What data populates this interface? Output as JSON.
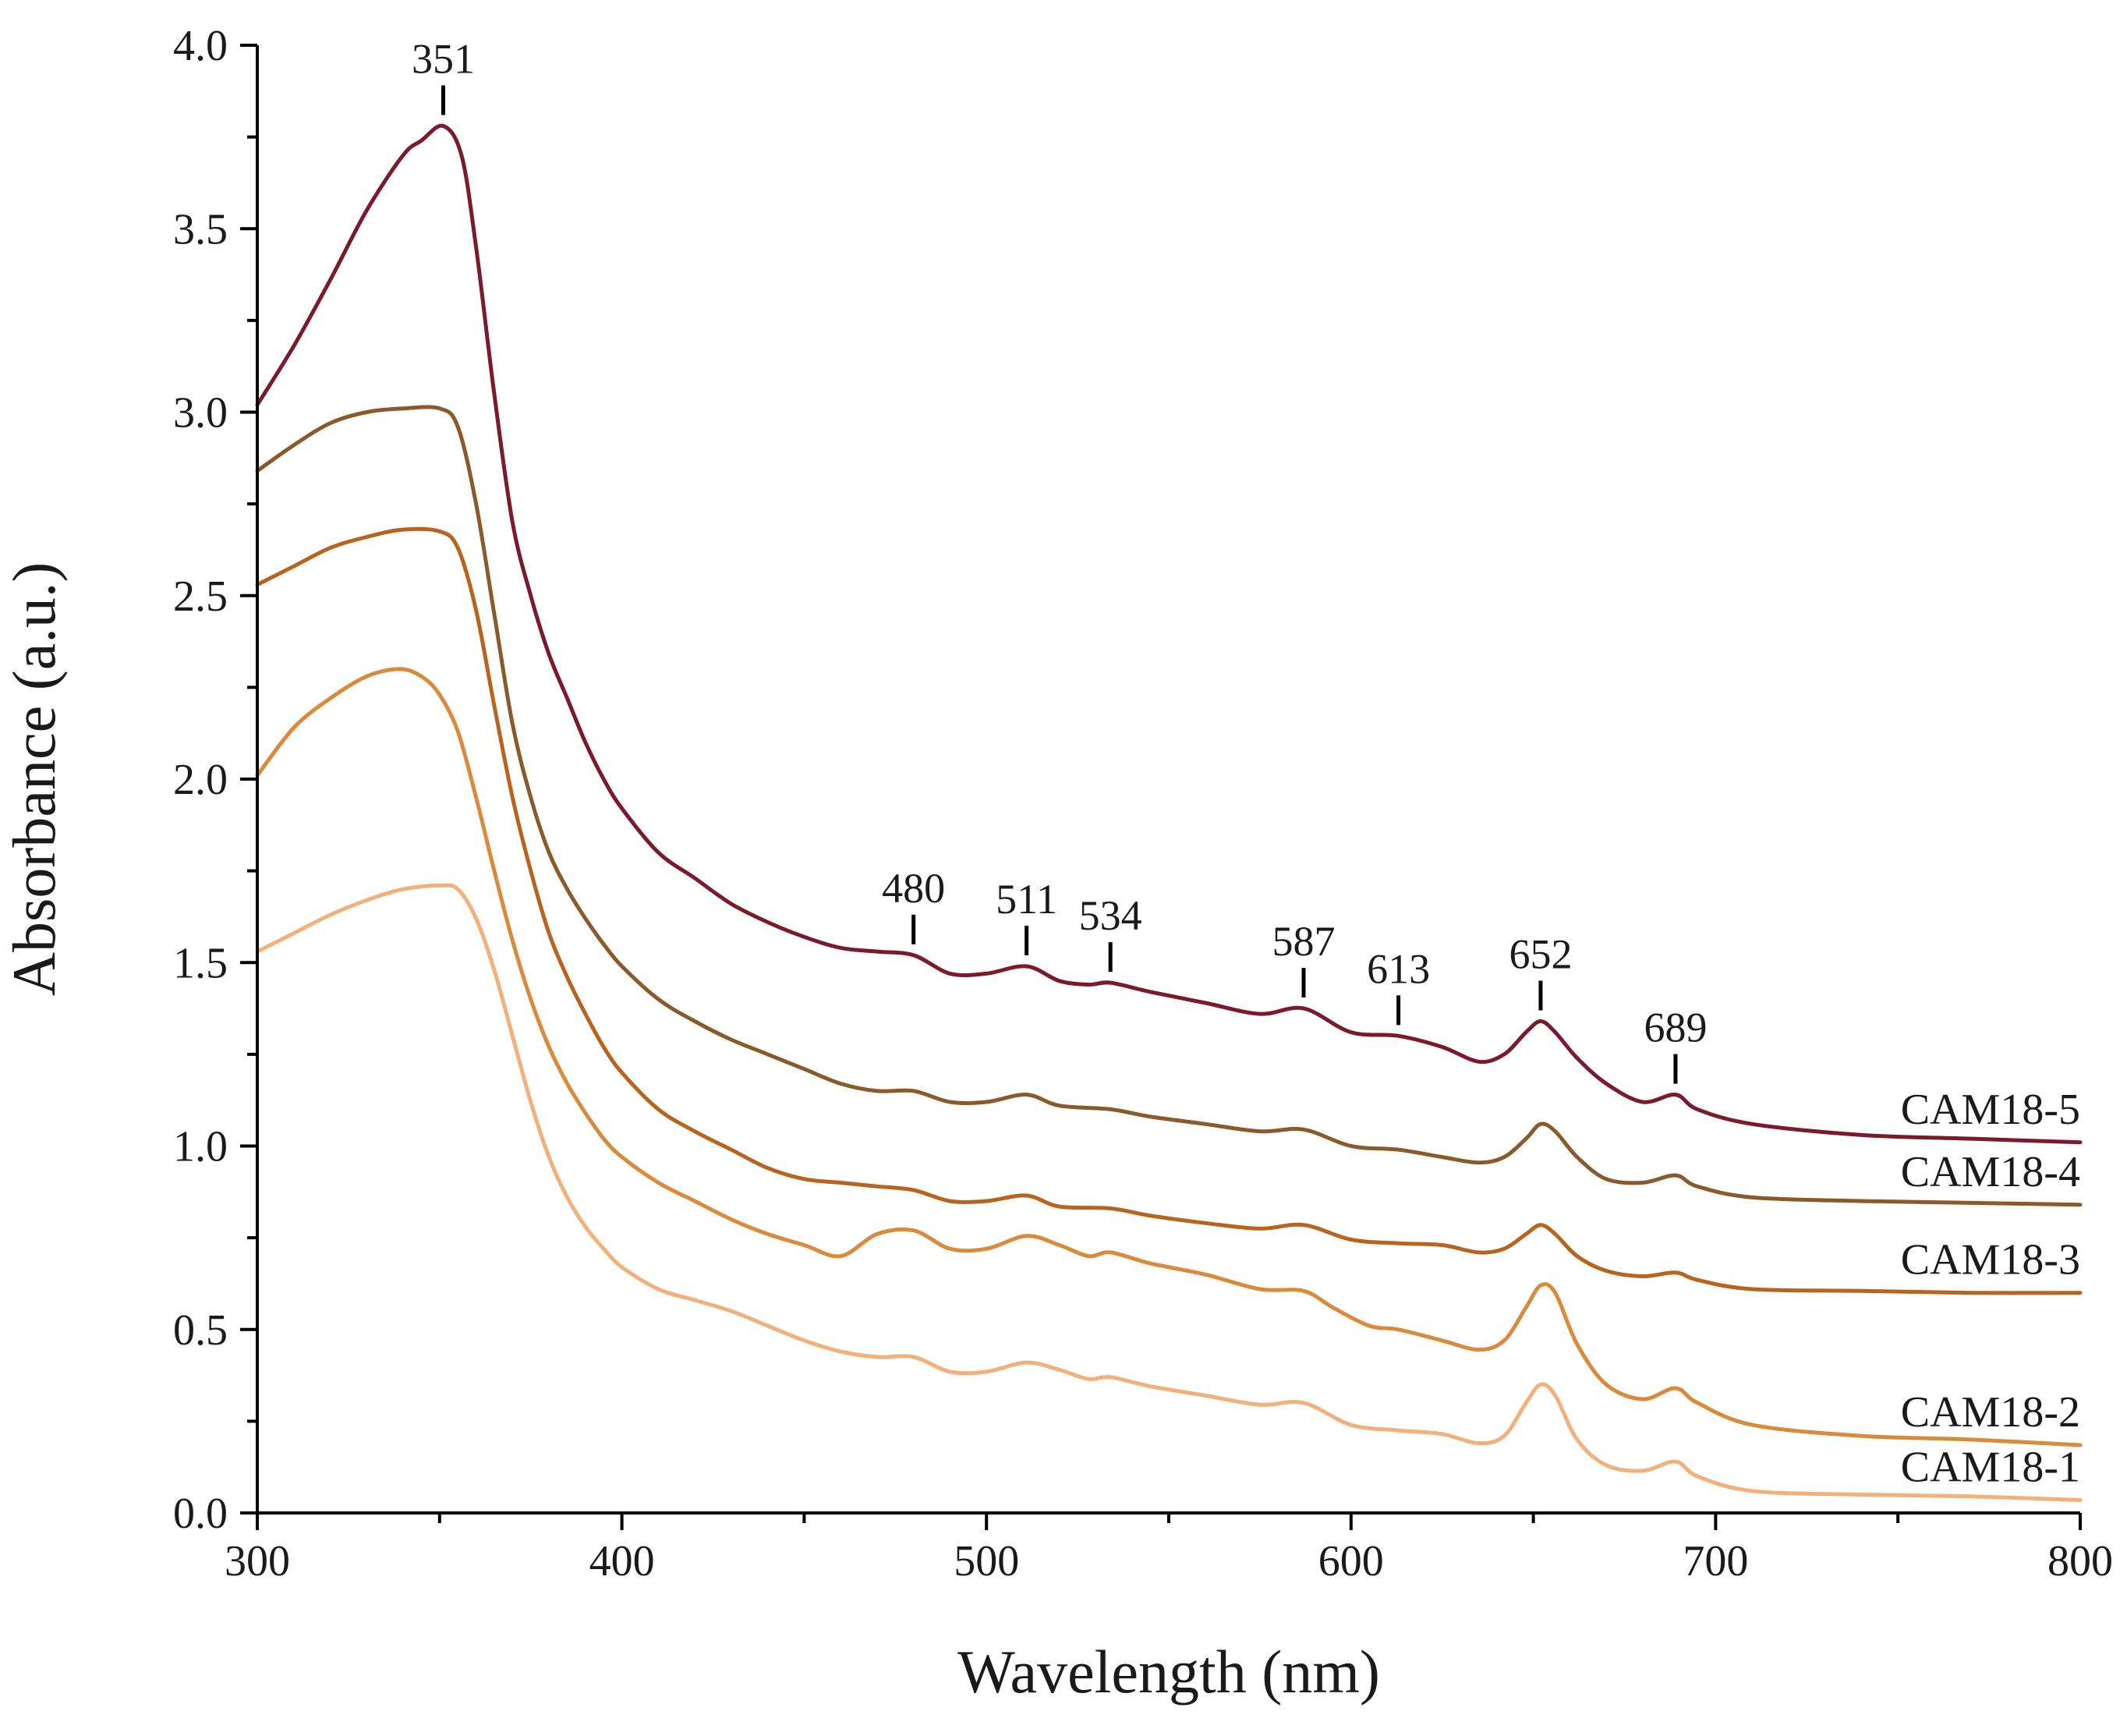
{
  "chart_data": {
    "type": "line",
    "title": "",
    "xlabel": "Wavelength (nm)",
    "ylabel": "Absorbance (a.u.)",
    "xlim": [
      300,
      800
    ],
    "ylim": [
      0.0,
      4.0
    ],
    "x_ticks": [
      "300",
      "400",
      "500",
      "600",
      "700",
      "800"
    ],
    "y_ticks": [
      "0.0",
      "0.5",
      "1.0",
      "1.5",
      "2.0",
      "2.5",
      "3.0",
      "3.5",
      "4.0"
    ],
    "grid": false,
    "series": [
      {
        "name": "CAM18-5",
        "color": "#7a1a2a",
        "points": [
          [
            300,
            3.02
          ],
          [
            310,
            3.18
          ],
          [
            320,
            3.36
          ],
          [
            330,
            3.55
          ],
          [
            340,
            3.7
          ],
          [
            345,
            3.74
          ],
          [
            351,
            3.78
          ],
          [
            356,
            3.7
          ],
          [
            360,
            3.45
          ],
          [
            365,
            3.05
          ],
          [
            370,
            2.7
          ],
          [
            375,
            2.5
          ],
          [
            380,
            2.34
          ],
          [
            385,
            2.22
          ],
          [
            390,
            2.1
          ],
          [
            395,
            2.0
          ],
          [
            400,
            1.92
          ],
          [
            410,
            1.8
          ],
          [
            420,
            1.73
          ],
          [
            430,
            1.66
          ],
          [
            440,
            1.61
          ],
          [
            450,
            1.57
          ],
          [
            460,
            1.54
          ],
          [
            470,
            1.53
          ],
          [
            480,
            1.52
          ],
          [
            490,
            1.47
          ],
          [
            500,
            1.47
          ],
          [
            511,
            1.49
          ],
          [
            520,
            1.45
          ],
          [
            528,
            1.44
          ],
          [
            534,
            1.445
          ],
          [
            545,
            1.42
          ],
          [
            560,
            1.39
          ],
          [
            575,
            1.36
          ],
          [
            587,
            1.375
          ],
          [
            600,
            1.31
          ],
          [
            613,
            1.3
          ],
          [
            625,
            1.27
          ],
          [
            635,
            1.23
          ],
          [
            642,
            1.25
          ],
          [
            648,
            1.31
          ],
          [
            652,
            1.34
          ],
          [
            656,
            1.31
          ],
          [
            662,
            1.24
          ],
          [
            670,
            1.17
          ],
          [
            680,
            1.12
          ],
          [
            689,
            1.14
          ],
          [
            695,
            1.1
          ],
          [
            710,
            1.06
          ],
          [
            740,
            1.03
          ],
          [
            770,
            1.02
          ],
          [
            800,
            1.01
          ]
        ]
      },
      {
        "name": "CAM18-4",
        "color": "#8b5a2b",
        "points": [
          [
            300,
            2.84
          ],
          [
            310,
            2.91
          ],
          [
            320,
            2.97
          ],
          [
            330,
            3.0
          ],
          [
            340,
            3.01
          ],
          [
            350,
            3.01
          ],
          [
            355,
            2.96
          ],
          [
            360,
            2.75
          ],
          [
            365,
            2.45
          ],
          [
            370,
            2.15
          ],
          [
            375,
            1.95
          ],
          [
            380,
            1.8
          ],
          [
            385,
            1.7
          ],
          [
            390,
            1.62
          ],
          [
            395,
            1.55
          ],
          [
            400,
            1.49
          ],
          [
            410,
            1.4
          ],
          [
            420,
            1.34
          ],
          [
            430,
            1.29
          ],
          [
            440,
            1.25
          ],
          [
            450,
            1.21
          ],
          [
            460,
            1.17
          ],
          [
            470,
            1.15
          ],
          [
            480,
            1.15
          ],
          [
            490,
            1.12
          ],
          [
            500,
            1.12
          ],
          [
            511,
            1.14
          ],
          [
            520,
            1.11
          ],
          [
            534,
            1.1
          ],
          [
            545,
            1.08
          ],
          [
            560,
            1.06
          ],
          [
            575,
            1.04
          ],
          [
            587,
            1.045
          ],
          [
            600,
            1.0
          ],
          [
            613,
            0.99
          ],
          [
            625,
            0.97
          ],
          [
            635,
            0.955
          ],
          [
            642,
            0.97
          ],
          [
            648,
            1.02
          ],
          [
            652,
            1.06
          ],
          [
            656,
            1.04
          ],
          [
            662,
            0.97
          ],
          [
            670,
            0.91
          ],
          [
            680,
            0.9
          ],
          [
            689,
            0.92
          ],
          [
            695,
            0.89
          ],
          [
            710,
            0.86
          ],
          [
            740,
            0.85
          ],
          [
            770,
            0.845
          ],
          [
            800,
            0.84
          ]
        ]
      },
      {
        "name": "CAM18-3",
        "color": "#b8641e",
        "points": [
          [
            300,
            2.53
          ],
          [
            310,
            2.58
          ],
          [
            320,
            2.63
          ],
          [
            330,
            2.66
          ],
          [
            340,
            2.68
          ],
          [
            350,
            2.675
          ],
          [
            355,
            2.63
          ],
          [
            360,
            2.46
          ],
          [
            365,
            2.2
          ],
          [
            370,
            1.95
          ],
          [
            375,
            1.75
          ],
          [
            380,
            1.58
          ],
          [
            385,
            1.46
          ],
          [
            390,
            1.36
          ],
          [
            395,
            1.27
          ],
          [
            400,
            1.2
          ],
          [
            410,
            1.1
          ],
          [
            420,
            1.04
          ],
          [
            430,
            0.99
          ],
          [
            440,
            0.94
          ],
          [
            450,
            0.91
          ],
          [
            460,
            0.9
          ],
          [
            470,
            0.89
          ],
          [
            480,
            0.88
          ],
          [
            490,
            0.85
          ],
          [
            500,
            0.85
          ],
          [
            511,
            0.865
          ],
          [
            520,
            0.835
          ],
          [
            534,
            0.83
          ],
          [
            545,
            0.81
          ],
          [
            560,
            0.79
          ],
          [
            575,
            0.775
          ],
          [
            587,
            0.785
          ],
          [
            600,
            0.745
          ],
          [
            613,
            0.735
          ],
          [
            625,
            0.73
          ],
          [
            635,
            0.71
          ],
          [
            642,
            0.72
          ],
          [
            648,
            0.76
          ],
          [
            652,
            0.785
          ],
          [
            656,
            0.76
          ],
          [
            662,
            0.7
          ],
          [
            670,
            0.66
          ],
          [
            680,
            0.645
          ],
          [
            689,
            0.655
          ],
          [
            695,
            0.635
          ],
          [
            710,
            0.61
          ],
          [
            740,
            0.605
          ],
          [
            770,
            0.6
          ],
          [
            800,
            0.6
          ]
        ]
      },
      {
        "name": "CAM18-2",
        "color": "#d98a3a",
        "points": [
          [
            300,
            2.01
          ],
          [
            310,
            2.14
          ],
          [
            320,
            2.22
          ],
          [
            330,
            2.28
          ],
          [
            339,
            2.3
          ],
          [
            345,
            2.28
          ],
          [
            350,
            2.23
          ],
          [
            355,
            2.13
          ],
          [
            360,
            1.95
          ],
          [
            365,
            1.75
          ],
          [
            370,
            1.56
          ],
          [
            375,
            1.4
          ],
          [
            380,
            1.27
          ],
          [
            385,
            1.17
          ],
          [
            390,
            1.09
          ],
          [
            395,
            1.02
          ],
          [
            400,
            0.97
          ],
          [
            410,
            0.9
          ],
          [
            420,
            0.85
          ],
          [
            430,
            0.8
          ],
          [
            440,
            0.76
          ],
          [
            450,
            0.73
          ],
          [
            460,
            0.7
          ],
          [
            470,
            0.76
          ],
          [
            480,
            0.77
          ],
          [
            490,
            0.72
          ],
          [
            500,
            0.72
          ],
          [
            511,
            0.755
          ],
          [
            520,
            0.73
          ],
          [
            528,
            0.7
          ],
          [
            534,
            0.71
          ],
          [
            545,
            0.68
          ],
          [
            560,
            0.65
          ],
          [
            575,
            0.61
          ],
          [
            587,
            0.605
          ],
          [
            595,
            0.56
          ],
          [
            605,
            0.51
          ],
          [
            613,
            0.5
          ],
          [
            625,
            0.47
          ],
          [
            635,
            0.445
          ],
          [
            642,
            0.47
          ],
          [
            648,
            0.56
          ],
          [
            652,
            0.62
          ],
          [
            656,
            0.6
          ],
          [
            662,
            0.46
          ],
          [
            670,
            0.35
          ],
          [
            680,
            0.31
          ],
          [
            689,
            0.34
          ],
          [
            695,
            0.3
          ],
          [
            710,
            0.24
          ],
          [
            740,
            0.21
          ],
          [
            770,
            0.2
          ],
          [
            800,
            0.185
          ]
        ]
      },
      {
        "name": "CAM18-1",
        "color": "#f2b07a",
        "points": [
          [
            300,
            1.53
          ],
          [
            310,
            1.58
          ],
          [
            320,
            1.63
          ],
          [
            330,
            1.67
          ],
          [
            340,
            1.7
          ],
          [
            350,
            1.71
          ],
          [
            355,
            1.7
          ],
          [
            360,
            1.62
          ],
          [
            365,
            1.48
          ],
          [
            370,
            1.3
          ],
          [
            375,
            1.12
          ],
          [
            380,
            0.97
          ],
          [
            385,
            0.86
          ],
          [
            390,
            0.78
          ],
          [
            395,
            0.72
          ],
          [
            400,
            0.67
          ],
          [
            410,
            0.61
          ],
          [
            420,
            0.58
          ],
          [
            430,
            0.55
          ],
          [
            440,
            0.51
          ],
          [
            450,
            0.47
          ],
          [
            460,
            0.44
          ],
          [
            470,
            0.425
          ],
          [
            480,
            0.425
          ],
          [
            490,
            0.385
          ],
          [
            500,
            0.385
          ],
          [
            511,
            0.41
          ],
          [
            520,
            0.39
          ],
          [
            528,
            0.365
          ],
          [
            534,
            0.37
          ],
          [
            545,
            0.345
          ],
          [
            560,
            0.32
          ],
          [
            575,
            0.295
          ],
          [
            587,
            0.3
          ],
          [
            600,
            0.24
          ],
          [
            613,
            0.225
          ],
          [
            625,
            0.215
          ],
          [
            635,
            0.19
          ],
          [
            642,
            0.21
          ],
          [
            648,
            0.3
          ],
          [
            652,
            0.35
          ],
          [
            656,
            0.32
          ],
          [
            662,
            0.2
          ],
          [
            670,
            0.13
          ],
          [
            680,
            0.115
          ],
          [
            689,
            0.14
          ],
          [
            695,
            0.1
          ],
          [
            710,
            0.06
          ],
          [
            740,
            0.05
          ],
          [
            770,
            0.045
          ],
          [
            800,
            0.035
          ]
        ]
      }
    ],
    "peak_annotations": [
      {
        "label": "351",
        "x": 351,
        "y": 3.78
      },
      {
        "label": "480",
        "x": 480,
        "y": 1.52
      },
      {
        "label": "511",
        "x": 511,
        "y": 1.49
      },
      {
        "label": "534",
        "x": 534,
        "y": 1.445
      },
      {
        "label": "587",
        "x": 587,
        "y": 1.375
      },
      {
        "label": "613",
        "x": 613,
        "y": 1.3
      },
      {
        "label": "652",
        "x": 652,
        "y": 1.34
      },
      {
        "label": "689",
        "x": 689,
        "y": 1.14
      }
    ]
  }
}
